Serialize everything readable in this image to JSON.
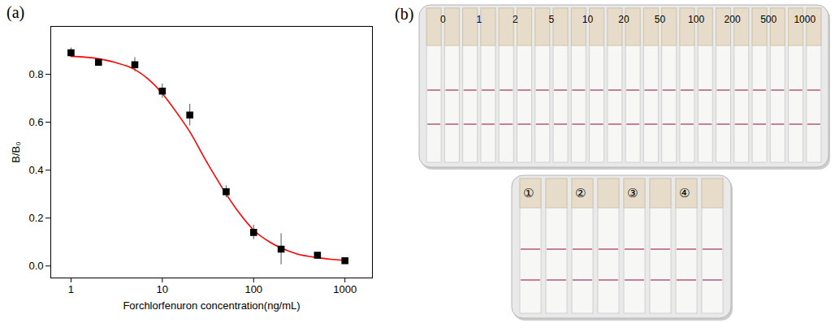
{
  "chart_data": {
    "type": "scatter",
    "panel_label": "(a)",
    "x_label": "Forchlorfenuron concentration(ng/mL)",
    "y_label": "B/B₀",
    "log": "x",
    "grid": false,
    "xlim": [
      0.6,
      2000
    ],
    "xticks": [
      1,
      10,
      100,
      1000
    ],
    "ylim": [
      -0.05,
      1.0
    ],
    "yticks": [
      {
        "value": 0,
        "label": "0.0"
      },
      0.2,
      0.4,
      0.6,
      0.8
    ],
    "series": [
      {
        "type": "line",
        "color": "#ff0000",
        "line_style": "solid",
        "x": [
          1,
          2,
          3,
          5,
          7,
          10,
          15,
          20,
          30,
          40,
          50,
          70,
          100,
          150,
          200,
          300,
          500,
          700,
          1000
        ],
        "values": [
          0.875,
          0.865,
          0.85,
          0.82,
          0.78,
          0.72,
          0.63,
          0.56,
          0.44,
          0.36,
          0.3,
          0.22,
          0.15,
          0.1,
          0.075,
          0.05,
          0.035,
          0.028,
          0.024
        ]
      },
      {
        "type": "scatter",
        "color": "#000000",
        "marker": "square",
        "x": [
          1,
          2,
          5,
          10,
          20,
          50,
          100,
          200,
          500,
          1000
        ],
        "values": [
          0.89,
          0.85,
          0.84,
          0.73,
          0.63,
          0.31,
          0.14,
          0.07,
          0.045,
          0.022
        ],
        "error": [
          0.02,
          0.01,
          0.03,
          0.03,
          0.045,
          0.025,
          0.03,
          0.065,
          0.005,
          0.005
        ]
      }
    ]
  },
  "strip_photos": {
    "panel_label": "(b)",
    "concentration_labels": [
      "0",
      "1",
      "2",
      "5",
      "10",
      "20",
      "50",
      "100",
      "200",
      "500",
      "1000"
    ],
    "sample_labels": [
      "①",
      "②",
      "③",
      "④"
    ]
  }
}
